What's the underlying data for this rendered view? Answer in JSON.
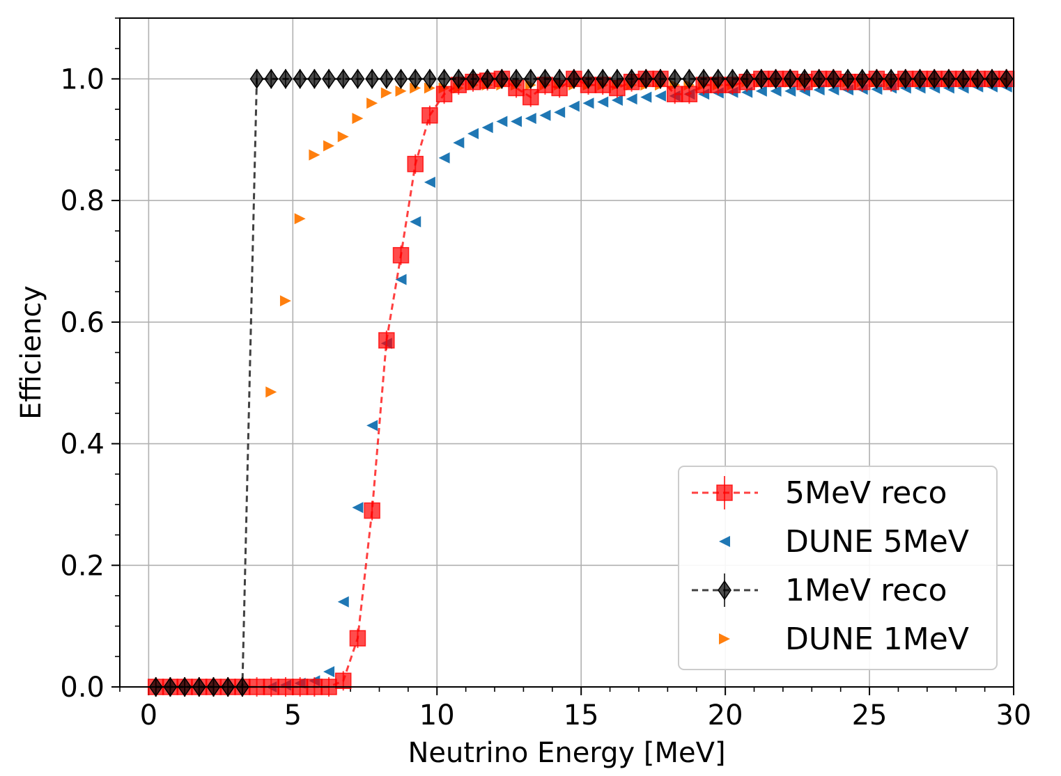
{
  "chart_data": {
    "type": "scatter",
    "title": "",
    "xlabel": "Neutrino Energy [MeV]",
    "ylabel": "Efficiency",
    "xlim": [
      -1,
      30
    ],
    "ylim": [
      0,
      1.1
    ],
    "xticks": [
      0,
      5,
      10,
      15,
      20,
      25,
      30
    ],
    "xtick_labels": [
      "0",
      "5",
      "10",
      "15",
      "20",
      "25",
      "30"
    ],
    "yticks": [
      0.0,
      0.2,
      0.4,
      0.6,
      0.8,
      1.0
    ],
    "ytick_labels": [
      "0.0",
      "0.2",
      "0.4",
      "0.6",
      "0.8",
      "1.0"
    ],
    "x_minor_step": 1,
    "y_minor_step": 0.05,
    "grid": true,
    "legend_position": "lower-right",
    "series": [
      {
        "name": "5MeV reco",
        "color": "#ff0000",
        "marker": "square",
        "linestyle": "dashed",
        "errorbars": true,
        "x": [
          0.25,
          0.75,
          1.25,
          1.75,
          2.25,
          2.75,
          3.25,
          3.75,
          4.25,
          4.75,
          5.25,
          5.75,
          6.25,
          6.75,
          7.25,
          7.75,
          8.25,
          8.75,
          9.25,
          9.75,
          10.25,
          10.75,
          11.25,
          11.75,
          12.25,
          12.75,
          13.25,
          13.75,
          14.25,
          14.75,
          15.25,
          15.75,
          16.25,
          16.75,
          17.25,
          17.75,
          18.25,
          18.75,
          19.25,
          19.75,
          20.25,
          20.75,
          21.25,
          21.75,
          22.25,
          22.75,
          23.25,
          23.75,
          24.25,
          24.75,
          25.25,
          25.75,
          26.25,
          26.75,
          27.25,
          27.75,
          28.25,
          28.75,
          29.25,
          29.75
        ],
        "y": [
          0,
          0,
          0,
          0,
          0,
          0,
          0,
          0,
          0,
          0,
          0,
          0,
          0,
          0.01,
          0.08,
          0.29,
          0.57,
          0.71,
          0.86,
          0.94,
          0.975,
          0.99,
          0.995,
          0.997,
          1.0,
          0.985,
          0.97,
          0.99,
          0.985,
          1.0,
          0.99,
          0.99,
          0.985,
          0.995,
          1.0,
          1.0,
          0.975,
          0.975,
          0.99,
          0.99,
          0.99,
          0.995,
          1.0,
          1.0,
          1.0,
          0.995,
          1.0,
          1.0,
          0.995,
          0.995,
          1.0,
          0.995,
          1.0,
          1.0,
          1.0,
          1.0,
          1.0,
          1.0,
          1.0,
          1.0
        ]
      },
      {
        "name": "DUNE 5MeV",
        "color": "#1f77b4",
        "marker": "triangle-left",
        "linestyle": "none",
        "x": [
          4.25,
          4.75,
          5.25,
          5.75,
          6.25,
          6.75,
          7.25,
          7.75,
          8.25,
          8.75,
          9.25,
          9.75,
          10.25,
          10.75,
          11.25,
          11.75,
          12.25,
          12.75,
          13.25,
          13.75,
          14.25,
          14.75,
          15.25,
          15.75,
          16.25,
          16.75,
          17.25,
          17.75,
          18.25,
          18.75,
          19.25,
          19.75,
          20.25,
          20.75,
          21.25,
          21.75,
          22.25,
          22.75,
          23.25,
          23.75,
          24.25,
          24.75,
          25.25,
          25.75,
          26.25,
          26.75,
          27.25,
          27.75,
          28.25,
          28.75,
          29.25,
          29.75
        ],
        "y": [
          0.0,
          0.003,
          0.006,
          0.01,
          0.025,
          0.14,
          0.295,
          0.43,
          0.565,
          0.67,
          0.765,
          0.83,
          0.87,
          0.895,
          0.91,
          0.92,
          0.93,
          0.93,
          0.935,
          0.94,
          0.945,
          0.955,
          0.96,
          0.962,
          0.965,
          0.967,
          0.97,
          0.972,
          0.972,
          0.975,
          0.975,
          0.977,
          0.978,
          0.978,
          0.98,
          0.98,
          0.98,
          0.98,
          0.982,
          0.982,
          0.982,
          0.983,
          0.983,
          0.985,
          0.985,
          0.985,
          0.985,
          0.985,
          0.985,
          0.987,
          0.987,
          0.987
        ]
      },
      {
        "name": "1MeV reco",
        "color": "#000000",
        "marker": "thin-diamond",
        "linestyle": "dashed",
        "errorbars": true,
        "x": [
          0.25,
          0.75,
          1.25,
          1.75,
          2.25,
          2.75,
          3.25,
          3.75,
          4.25,
          4.75,
          5.25,
          5.75,
          6.25,
          6.75,
          7.25,
          7.75,
          8.25,
          8.75,
          9.25,
          9.75,
          10.25,
          10.75,
          11.25,
          11.75,
          12.25,
          12.75,
          13.25,
          13.75,
          14.25,
          14.75,
          15.25,
          15.75,
          16.25,
          16.75,
          17.25,
          17.75,
          18.25,
          18.75,
          19.25,
          19.75,
          20.25,
          20.75,
          21.25,
          21.75,
          22.25,
          22.75,
          23.25,
          23.75,
          24.25,
          24.75,
          25.25,
          25.75,
          26.25,
          26.75,
          27.25,
          27.75,
          28.25,
          28.75,
          29.25,
          29.75
        ],
        "y": [
          0,
          0,
          0,
          0,
          0,
          0,
          0,
          1,
          1,
          1,
          1,
          1,
          1,
          1,
          1,
          1,
          1,
          1,
          1,
          1,
          1,
          1,
          1,
          1,
          1,
          1,
          1,
          1,
          1,
          1,
          1,
          1,
          1,
          1,
          1,
          1,
          1,
          1,
          1,
          1,
          1,
          1,
          1,
          1,
          1,
          1,
          1,
          1,
          1,
          1,
          1,
          1,
          1,
          1,
          1,
          1,
          1,
          1,
          1,
          1
        ]
      },
      {
        "name": "DUNE 1MeV",
        "color": "#ff7f0e",
        "marker": "triangle-right",
        "linestyle": "none",
        "x": [
          4.25,
          4.75,
          5.25,
          5.75,
          6.25,
          6.75,
          7.25,
          7.75,
          8.25,
          8.75,
          9.25,
          9.75,
          10.25,
          10.75,
          11.25,
          11.75,
          12.25,
          12.75,
          13.25,
          13.75,
          14.25,
          14.75,
          15.25,
          15.75,
          16.25,
          16.75,
          17.25,
          17.75,
          18.25,
          18.75,
          19.25,
          19.75,
          20.25,
          20.75,
          21.25,
          21.75,
          22.25,
          22.75,
          23.25,
          23.75,
          24.25,
          24.75,
          25.25,
          25.75,
          26.25,
          26.75,
          27.25,
          27.75,
          28.25,
          28.75,
          29.25,
          29.75
        ],
        "y": [
          0.485,
          0.635,
          0.77,
          0.875,
          0.89,
          0.905,
          0.935,
          0.96,
          0.977,
          0.98,
          0.985,
          0.985,
          0.985,
          0.985,
          0.99,
          0.99,
          0.99,
          0.99,
          0.99,
          0.99,
          0.99,
          0.99,
          0.99,
          0.99,
          0.99,
          0.99,
          0.99,
          0.99,
          0.99,
          0.99,
          0.99,
          0.99,
          0.99,
          0.995,
          0.995,
          0.995,
          0.995,
          0.995,
          0.995,
          0.995,
          0.995,
          0.995,
          0.995,
          0.995,
          0.995,
          0.995,
          0.995,
          0.995,
          0.995,
          0.995,
          0.995,
          0.995
        ]
      }
    ]
  }
}
